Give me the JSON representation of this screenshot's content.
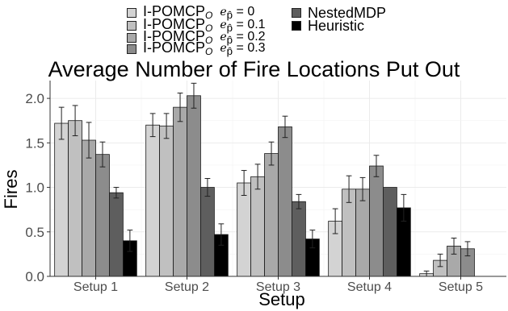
{
  "chart_data": {
    "type": "bar",
    "title": "Average Number of Fire Locations Put Out",
    "xlabel": "Setup",
    "ylabel": "Fires",
    "ylim": [
      0,
      2.2
    ],
    "yticks": [
      "0.0",
      "0.5",
      "1.0",
      "1.5",
      "2.0"
    ],
    "categories": [
      "Setup 1",
      "Setup 2",
      "Setup 3",
      "Setup 4",
      "Setup 5"
    ],
    "grid": true,
    "legend_position": "top",
    "series": [
      {
        "name": "I-POMCP",
        "name_sub": "O",
        "param_symbol": "e",
        "param_sub": "p̂",
        "param_value": "0",
        "color": "#d3d3d3",
        "values": [
          1.72,
          1.7,
          1.05,
          0.62,
          0.03
        ],
        "err": [
          0.18,
          0.13,
          0.14,
          0.14,
          0.03
        ]
      },
      {
        "name": "I-POMCP",
        "name_sub": "O",
        "param_symbol": "e",
        "param_sub": "p̂",
        "param_value": "0.1",
        "color": "#c0c0c0",
        "values": [
          1.75,
          1.69,
          1.12,
          0.98,
          0.18
        ],
        "err": [
          0.17,
          0.14,
          0.14,
          0.15,
          0.07
        ]
      },
      {
        "name": "I-POMCP",
        "name_sub": "O",
        "param_symbol": "e",
        "param_sub": "p̂",
        "param_value": "0.2",
        "color": "#a9a9a9",
        "values": [
          1.53,
          1.9,
          1.38,
          0.98,
          0.34
        ],
        "err": [
          0.2,
          0.16,
          0.13,
          0.13,
          0.09
        ]
      },
      {
        "name": "I-POMCP",
        "name_sub": "O",
        "param_symbol": "e",
        "param_sub": "p̂",
        "param_value": "0.3",
        "color": "#8c8c8c",
        "values": [
          1.37,
          2.03,
          1.68,
          1.24,
          0.31
        ],
        "err": [
          0.14,
          0.14,
          0.12,
          0.12,
          0.08
        ]
      },
      {
        "name": "NestedMDP",
        "color": "#5e5e5e",
        "values": [
          0.94,
          1.0,
          0.84,
          1.0,
          0.0
        ],
        "err": [
          0.06,
          0.1,
          0.08,
          0.0,
          0.0
        ]
      },
      {
        "name": "Heuristic",
        "color": "#000000",
        "values": [
          0.4,
          0.47,
          0.42,
          0.77,
          0.0
        ],
        "err": [
          0.12,
          0.12,
          0.1,
          0.15,
          0.0
        ]
      }
    ]
  }
}
